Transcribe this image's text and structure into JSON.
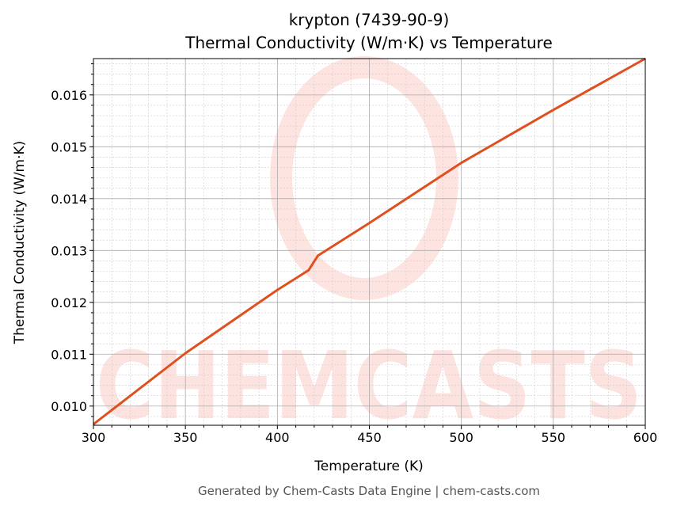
{
  "chart_data": {
    "type": "line",
    "title": "krypton (7439-90-9)",
    "subtitle": "Thermal Conductivity (W/m·K) vs Temperature",
    "xlabel": "Temperature (K)",
    "ylabel": "Thermal Conductivity (W/m·K)",
    "xlim": [
      300,
      600
    ],
    "ylim": [
      0.00963,
      0.0167
    ],
    "xticks": [
      300,
      350,
      400,
      450,
      500,
      550,
      600
    ],
    "xtick_labels": [
      "300",
      "350",
      "400",
      "450",
      "500",
      "550",
      "600"
    ],
    "yticks": [
      0.01,
      0.011,
      0.012,
      0.013,
      0.014,
      0.015,
      0.016
    ],
    "ytick_labels": [
      "0.010",
      "0.011",
      "0.012",
      "0.013",
      "0.014",
      "0.015",
      "0.016"
    ],
    "grid": true,
    "series": [
      {
        "color": "#e0501e",
        "x": [
          300,
          350,
          400,
          417,
          422,
          450,
          500,
          550,
          600
        ],
        "y": [
          0.00965,
          0.01102,
          0.01224,
          0.01262,
          0.0129,
          0.01353,
          0.01469,
          0.01571,
          0.0167
        ]
      }
    ]
  },
  "footer": "Generated by Chem-Casts Data Engine | chem-casts.com",
  "watermark": "CHEMCASTS"
}
